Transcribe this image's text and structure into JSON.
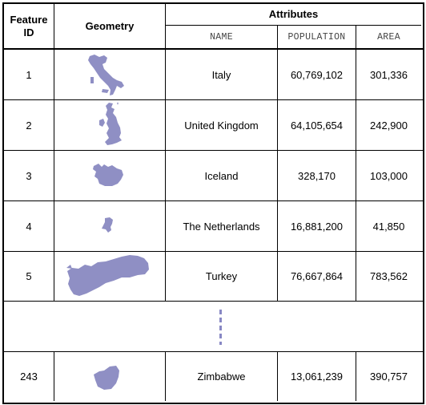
{
  "table": {
    "headers": {
      "feature_id_line1": "Feature",
      "feature_id_line2": "ID",
      "geometry": "Geometry",
      "attributes": "Attributes",
      "name": "NAME",
      "population": "POPULATION",
      "area": "AREA"
    },
    "rows": [
      {
        "id": "1",
        "name": "Italy",
        "population": "60,769,102",
        "area": "301,336",
        "shape": "italy-shape"
      },
      {
        "id": "2",
        "name": "United Kingdom",
        "population": "64,105,654",
        "area": "242,900",
        "shape": "uk-shape"
      },
      {
        "id": "3",
        "name": "Iceland",
        "population": "328,170",
        "area": "103,000",
        "shape": "iceland-shape"
      },
      {
        "id": "4",
        "name": "The Netherlands",
        "population": "16,881,200",
        "area": "41,850",
        "shape": "netherlands-shape"
      },
      {
        "id": "5",
        "name": "Turkey",
        "population": "76,667,864",
        "area": "783,562",
        "shape": "turkey-shape"
      },
      {
        "id": "243",
        "name": "Zimbabwe",
        "population": "13,061,239",
        "area": "390,757",
        "shape": "zimbabwe-shape"
      }
    ],
    "shape_color": "#8f8fc4",
    "ellipsis_color": "#8888c4"
  }
}
